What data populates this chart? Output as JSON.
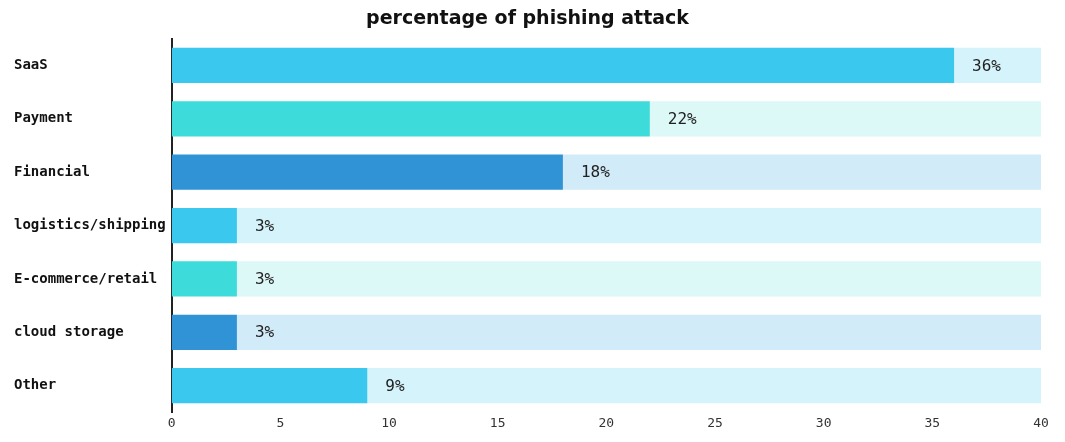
{
  "chart_data": {
    "type": "bar",
    "orientation": "horizontal",
    "title": "percentage of phishing attack",
    "categories": [
      "SaaS",
      "Payment",
      "Financial",
      "logistics/shipping",
      "E-commerce/retail",
      "cloud storage",
      "Other"
    ],
    "series": [
      {
        "colors": [
          "#3ac8ef",
          "#3ddbd9",
          "#2f93d6",
          "#3ac8ef",
          "#3ddbd9",
          "#2f93d6",
          "#3ac8ef"
        ],
        "values": [
          36,
          22,
          18,
          3,
          3,
          3,
          9
        ],
        "value_labels": [
          "36%",
          "22%",
          "18%",
          "3%",
          "3%",
          "3%",
          "9%"
        ]
      },
      {
        "colors": [
          "#d4f3fb",
          "#dcf8f7",
          "#d2ebf8",
          "#d4f3fb",
          "#dcf8f7",
          "#d2ebf8",
          "#d4f3fb"
        ],
        "values": [
          4,
          18,
          22,
          37,
          37,
          37,
          31
        ]
      }
    ],
    "stacked": true,
    "xlim": [
      0,
      40
    ],
    "xticks": [
      0,
      5,
      10,
      15,
      20,
      25,
      30,
      35,
      40
    ],
    "grid": false,
    "legend": false
  }
}
